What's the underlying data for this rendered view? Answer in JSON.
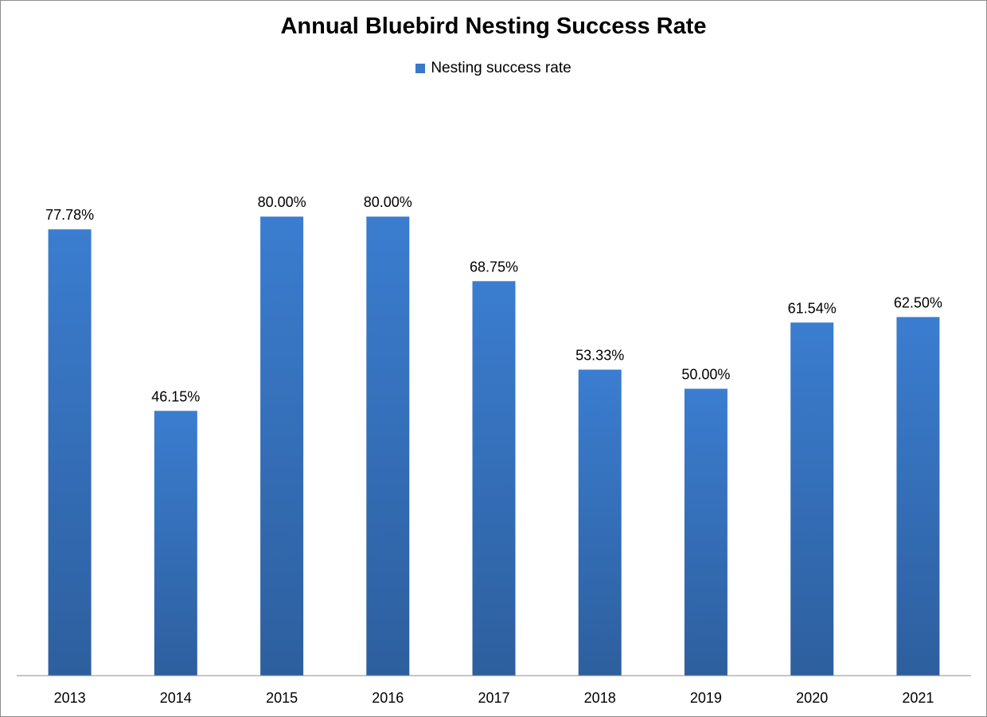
{
  "chart_data": {
    "type": "bar",
    "title": "Annual Bluebird Nesting Success Rate",
    "xlabel": "",
    "ylabel": "",
    "categories": [
      "2013",
      "2014",
      "2015",
      "2016",
      "2017",
      "2018",
      "2019",
      "2020",
      "2021"
    ],
    "series": [
      {
        "name": "Nesting success rate",
        "values": [
          77.78,
          46.15,
          80.0,
          80.0,
          68.75,
          53.33,
          50.0,
          61.54,
          62.5
        ],
        "labels": [
          "77.78%",
          "46.15%",
          "80.00%",
          "80.00%",
          "68.75%",
          "53.33%",
          "50.00%",
          "61.54%",
          "62.50%"
        ],
        "color": "#3a78c9"
      }
    ],
    "ylim": [
      0,
      100
    ],
    "grid": false,
    "legend": "top-center"
  }
}
